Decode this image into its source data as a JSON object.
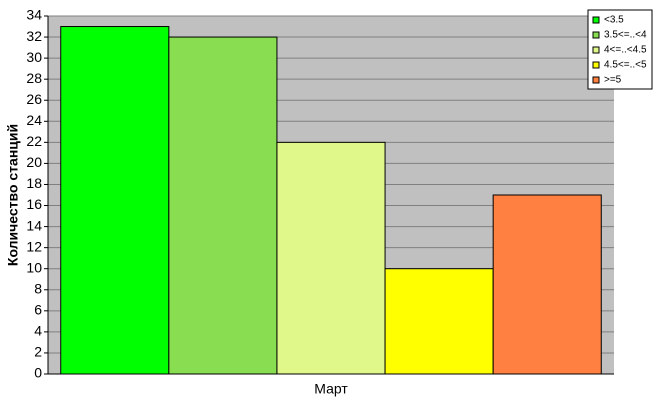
{
  "chart_data": {
    "type": "bar",
    "y_label": "Количество станций",
    "categories": [
      "Март"
    ],
    "series": [
      {
        "name": "<3.5",
        "color": "#00ff00",
        "values": [
          33
        ]
      },
      {
        "name": "3.5<=..<4",
        "color": "#88dd50",
        "values": [
          32
        ]
      },
      {
        "name": "4<=..<4.5",
        "color": "#e0f88a",
        "values": [
          22
        ]
      },
      {
        "name": "4.5<=..<5",
        "color": "#ffff00",
        "values": [
          10
        ]
      },
      {
        "name": ">=5",
        "color": "#ff8040",
        "values": [
          17
        ]
      }
    ],
    "ylim": [
      0,
      34
    ],
    "yticks": [
      0,
      2,
      4,
      6,
      8,
      10,
      12,
      14,
      16,
      18,
      20,
      22,
      24,
      26,
      28,
      30,
      32,
      34
    ],
    "grid": true,
    "legend": "top-right"
  }
}
